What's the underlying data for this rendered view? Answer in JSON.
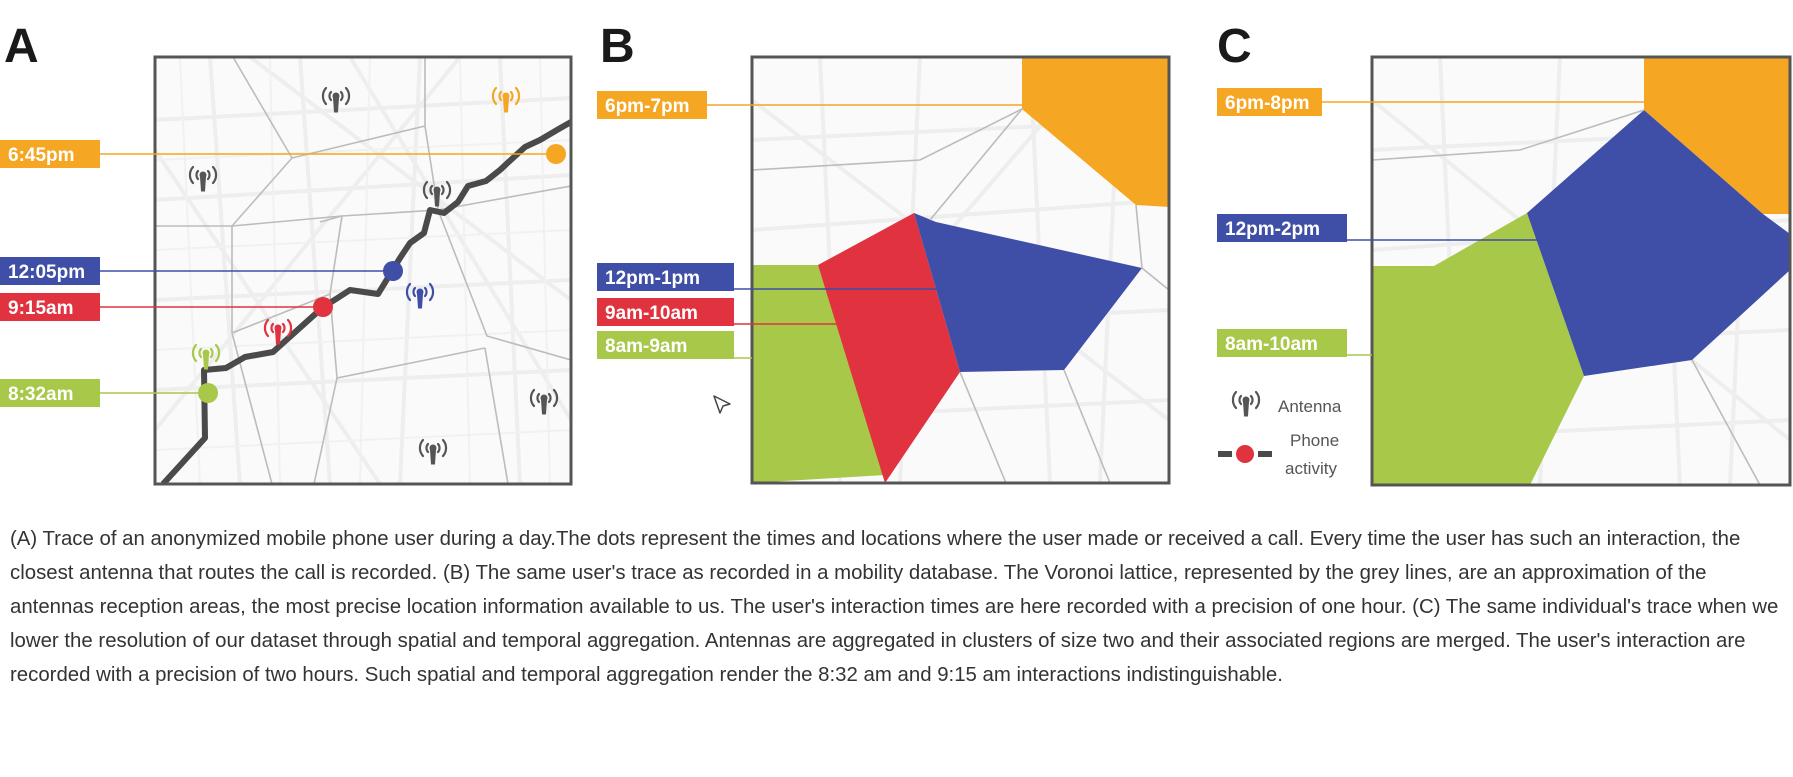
{
  "colors": {
    "orange": "#f5a623",
    "blue": "#3f4ea6",
    "red": "#e0323f",
    "green": "#a8c84a",
    "trace": "#4a4a4a",
    "antenna_grey": "#555555",
    "border": "#555555",
    "voronoi": "#bcbcbc",
    "street": "#eeeeee"
  },
  "panel_a": {
    "letter": "A",
    "times": [
      {
        "label": "6:45pm",
        "color": "orange"
      },
      {
        "label": "12:05pm",
        "color": "blue"
      },
      {
        "label": "9:15am",
        "color": "red"
      },
      {
        "label": "8:32am",
        "color": "green"
      }
    ],
    "antenna_icons": [
      "antenna-icon",
      "antenna-icon",
      "antenna-icon",
      "antenna-icon",
      "antenna-icon",
      "antenna-icon"
    ]
  },
  "panel_b": {
    "letter": "B",
    "time_ranges": [
      {
        "label": "6pm-7pm",
        "color": "orange"
      },
      {
        "label": "12pm-1pm",
        "color": "blue"
      },
      {
        "label": "9am-10am",
        "color": "red"
      },
      {
        "label": "8am-9am",
        "color": "green"
      }
    ]
  },
  "panel_c": {
    "letter": "C",
    "time_ranges": [
      {
        "label": "6pm-8pm",
        "color": "orange"
      },
      {
        "label": "12pm-2pm",
        "color": "blue"
      },
      {
        "label": "8am-10am",
        "color": "green"
      }
    ]
  },
  "legend": {
    "antenna_label": "Antenna",
    "phone_activity_line1": "Phone",
    "phone_activity_line2": "activity"
  },
  "caption": "(A) Trace of an anonymized mobile phone user during a day.The dots represent the times and locations where the user made or received a call. Every time the user has such an interaction, the closest antenna that routes the call is recorded. (B) The same user's trace as recorded in a mobility database. The Voronoi lattice, represented by the grey lines, are an approximation of the antennas reception areas, the most precise location information available to us. The user's interaction times are here recorded with a precision of one hour. (C) The same individual's trace when we lower the resolution of our dataset through spatial and temporal aggregation. Antennas are aggregated in clusters of size two and their associated regions are merged. The user's interaction are recorded with a precision of two hours. Such spatial and temporal aggregation render the 8:32 am and 9:15 am interactions indistinguishable."
}
